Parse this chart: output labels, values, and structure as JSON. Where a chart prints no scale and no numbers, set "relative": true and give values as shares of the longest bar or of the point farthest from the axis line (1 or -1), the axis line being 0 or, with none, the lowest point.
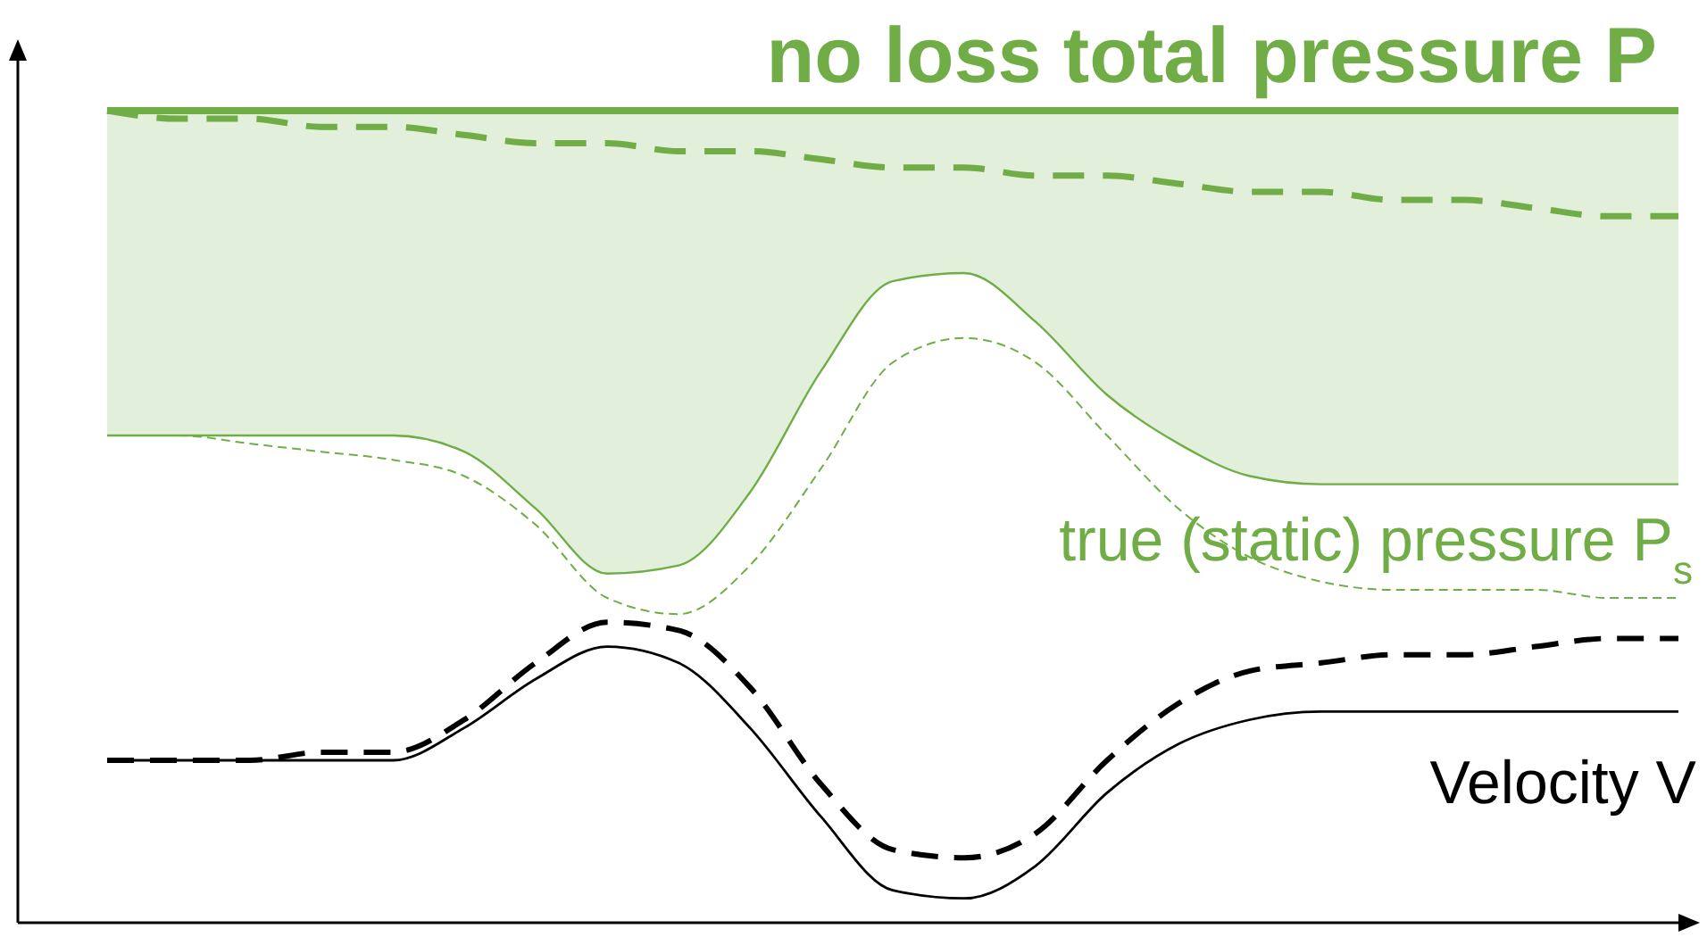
{
  "chart_data": {
    "type": "line",
    "relative": true,
    "categories": [
      null,
      null,
      null,
      null,
      null,
      null,
      null,
      null,
      null,
      null,
      null,
      null,
      null,
      null,
      null,
      null,
      null,
      null,
      null,
      null,
      null,
      null,
      null
    ],
    "series": [
      {
        "name": "no loss total pressure P",
        "color": "#70ad47",
        "line_style": "solid",
        "values": [
          1,
          1,
          1,
          1,
          1,
          1,
          1,
          1,
          1,
          1,
          1,
          1,
          1,
          1,
          1,
          1,
          1,
          1,
          1,
          1,
          1,
          1,
          1
        ],
        "lower": [
          0.6,
          0.6,
          0.6,
          0.6,
          0.6,
          0.58,
          0.51,
          0.43,
          0.44,
          0.53,
          0.68,
          0.79,
          0.8,
          0.74,
          0.65,
          0.59,
          0.55,
          0.54,
          0.54,
          0.54,
          0.54,
          0.54,
          0.54
        ],
        "upper": [
          1,
          1,
          1,
          1,
          1,
          1,
          1,
          1,
          1,
          1,
          1,
          1,
          1,
          1,
          1,
          1,
          1,
          1,
          1,
          1,
          1,
          1,
          1
        ]
      },
      {
        "color": "#70ad47",
        "line_style": "dashed",
        "values": [
          1,
          0.99,
          0.99,
          0.98,
          0.98,
          0.97,
          0.96,
          0.96,
          0.95,
          0.95,
          0.94,
          0.93,
          0.93,
          0.92,
          0.92,
          0.91,
          0.9,
          0.9,
          0.89,
          0.89,
          0.88,
          0.87,
          0.87
        ]
      },
      {
        "name": "true (static) pressure P$_{s}$",
        "color": "#70ad47",
        "line_style": "solid",
        "values": [
          0.6,
          0.6,
          0.6,
          0.6,
          0.6,
          0.58,
          0.51,
          0.43,
          0.44,
          0.53,
          0.68,
          0.79,
          0.8,
          0.74,
          0.65,
          0.59,
          0.55,
          0.54,
          0.54,
          0.54,
          0.54,
          0.54,
          0.54
        ]
      },
      {
        "color": "#70ad47",
        "line_style": "dashed",
        "values": [
          0.6,
          0.6,
          0.59,
          0.58,
          0.57,
          0.55,
          0.49,
          0.4,
          0.38,
          0.44,
          0.56,
          0.69,
          0.72,
          0.69,
          0.6,
          0.51,
          0.45,
          0.42,
          0.41,
          0.41,
          0.41,
          0.4,
          0.4
        ]
      },
      {
        "name": "Velocity V",
        "color": "#000000",
        "line_style": "solid",
        "values": [
          0.2,
          0.2,
          0.2,
          0.2,
          0.2,
          0.24,
          0.3,
          0.34,
          0.32,
          0.24,
          0.13,
          0.04,
          0.03,
          0.07,
          0.16,
          0.22,
          0.25,
          0.26,
          0.26,
          0.26,
          0.26,
          0.26,
          0.26
        ]
      },
      {
        "color": "#000000",
        "line_style": "dashed",
        "values": [
          0.2,
          0.2,
          0.2,
          0.21,
          0.21,
          0.25,
          0.32,
          0.37,
          0.36,
          0.29,
          0.17,
          0.09,
          0.08,
          0.11,
          0.2,
          0.27,
          0.31,
          0.32,
          0.33,
          0.33,
          0.34,
          0.35,
          0.35
        ]
      }
    ]
  }
}
